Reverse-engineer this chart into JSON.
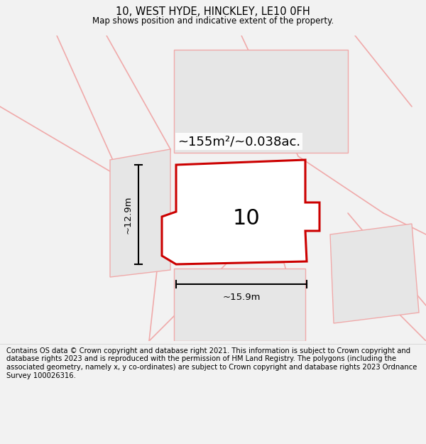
{
  "title_line1": "10, WEST HYDE, HINCKLEY, LE10 0FH",
  "title_line2": "Map shows position and indicative extent of the property.",
  "footer_text": "Contains OS data © Crown copyright and database right 2021. This information is subject to Crown copyright and database rights 2023 and is reproduced with the permission of HM Land Registry. The polygons (including the associated geometry, namely x, y co-ordinates) are subject to Crown copyright and database rights 2023 Ordnance Survey 100026316.",
  "background_color": "#f2f2f2",
  "map_bg": "#fafafa",
  "plot_fill": "#ffffff",
  "plot_edge": "#cc0000",
  "nearby_fill": "#e6e6e6",
  "nearby_edge": "#f0aaaa",
  "road_color": "#f0aaaa",
  "area_label": "~155m²/~0.038ac.",
  "number_label": "10",
  "width_label": "~15.9m",
  "height_label": "~12.9m"
}
